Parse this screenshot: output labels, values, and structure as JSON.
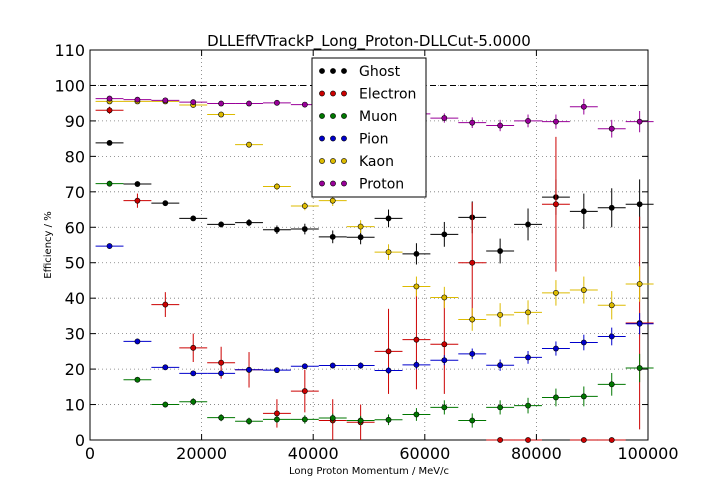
{
  "chart_data": {
    "type": "scatter",
    "title": "DLLEffVTrackP_Long_Proton-DLLCut-5.0000",
    "xlabel": "Long Proton Momentum / MeV/c",
    "ylabel": "Efficiency / %",
    "xlim": [
      0,
      100000
    ],
    "ylim": [
      0,
      110
    ],
    "xticks": [
      0,
      20000,
      40000,
      60000,
      80000,
      100000
    ],
    "yticks": [
      0,
      10,
      20,
      30,
      40,
      50,
      60,
      70,
      80,
      90,
      100,
      110
    ],
    "grid": true,
    "reference_line": 100,
    "legend_position": "top-center",
    "x_bin_half_width": 2500,
    "series": [
      {
        "name": "Ghost",
        "color": "#000000",
        "x": [
          3500,
          8500,
          13500,
          18500,
          23500,
          28500,
          33500,
          38500,
          43500,
          48500,
          53500,
          58500,
          63500,
          68500,
          73500,
          78500,
          83500,
          88500,
          93500,
          98500
        ],
        "y": [
          83.8,
          72.2,
          66.8,
          62.5,
          60.8,
          61.3,
          59.3,
          59.5,
          57.3,
          57.2,
          62.5,
          52.5,
          58,
          62.8,
          53.3,
          60.8,
          68.5,
          64.5,
          65.5,
          66.5
        ],
        "err": [
          0.5,
          0.5,
          0.6,
          0.7,
          0.8,
          1,
          1.2,
          1.5,
          1.8,
          2,
          2.5,
          3,
          3.5,
          4.5,
          3.5,
          4.5,
          5,
          5,
          5.5,
          7
        ]
      },
      {
        "name": "Electron",
        "color": "#cc0000",
        "x": [
          3500,
          8500,
          13500,
          18500,
          23500,
          28500,
          33500,
          38500,
          43500,
          48500,
          53500,
          58500,
          63500,
          68500,
          73500,
          78500,
          83500,
          88500,
          93500,
          98500
        ],
        "y": [
          93,
          67.5,
          38.2,
          26,
          21.8,
          19.8,
          7.5,
          13.8,
          5.5,
          5,
          25,
          28.3,
          27,
          50,
          0,
          0,
          66.5,
          0,
          0,
          33
        ],
        "err": [
          1,
          2,
          3.5,
          4,
          4.5,
          5,
          4,
          6,
          6,
          5,
          12,
          14,
          14,
          17,
          0,
          0,
          19,
          0,
          0,
          30
        ]
      },
      {
        "name": "Muon",
        "color": "#007700",
        "x": [
          3500,
          8500,
          13500,
          18500,
          23500,
          28500,
          33500,
          38500,
          43500,
          48500,
          53500,
          58500,
          63500,
          68500,
          73500,
          78500,
          83500,
          88500,
          93500,
          98500
        ],
        "y": [
          72.3,
          17,
          10,
          10.8,
          6.3,
          5.3,
          5.8,
          5.8,
          6.2,
          5.5,
          5.7,
          7.2,
          9.2,
          5.5,
          9.2,
          9.7,
          12,
          12.3,
          15.7,
          20.3
        ],
        "err": [
          0.8,
          0.8,
          0.8,
          1,
          1,
          1,
          1,
          1.2,
          1.2,
          1.3,
          1.5,
          1.8,
          2,
          2,
          2,
          2.2,
          2.5,
          2.8,
          3.2,
          4
        ]
      },
      {
        "name": "Pion",
        "color": "#0000cc",
        "x": [
          3500,
          8500,
          13500,
          18500,
          23500,
          28500,
          33500,
          38500,
          43500,
          48500,
          53500,
          58500,
          63500,
          68500,
          73500,
          78500,
          83500,
          88500,
          93500,
          98500
        ],
        "y": [
          54.7,
          27.8,
          20.5,
          18.8,
          18.8,
          19.8,
          19.7,
          20.8,
          21,
          21,
          19.6,
          21.2,
          22.5,
          24.3,
          21.1,
          23.3,
          25.8,
          27.5,
          29.2,
          32.8
        ],
        "err": [
          0.3,
          0.3,
          0.4,
          0.4,
          0.5,
          0.5,
          0.6,
          0.7,
          0.8,
          0.9,
          1,
          1.2,
          1.4,
          1.5,
          1.6,
          1.8,
          2,
          2.2,
          2.5,
          3
        ]
      },
      {
        "name": "Kaon",
        "color": "#ddbb00",
        "x": [
          3500,
          8500,
          13500,
          18500,
          23500,
          28500,
          33500,
          38500,
          43500,
          48500,
          53500,
          58500,
          63500,
          68500,
          73500,
          78500,
          83500,
          88500,
          93500,
          98500
        ],
        "y": [
          95.5,
          95.5,
          95.5,
          94.5,
          91.8,
          83.3,
          71.5,
          66,
          67.5,
          60.2,
          53,
          43.3,
          40.2,
          34,
          35.3,
          36,
          41.5,
          42.3,
          38,
          44
        ],
        "err": [
          0.3,
          0.3,
          0.4,
          0.5,
          0.6,
          0.8,
          1,
          1.2,
          1.5,
          1.8,
          2.2,
          2.8,
          3,
          3.2,
          3.3,
          3.4,
          3.6,
          3.8,
          4,
          5
        ]
      },
      {
        "name": "Proton",
        "color": "#990099",
        "x": [
          3500,
          8500,
          13500,
          18500,
          23500,
          28500,
          33500,
          38500,
          43500,
          48500,
          53500,
          58500,
          63500,
          68500,
          73500,
          78500,
          83500,
          88500,
          93500,
          98500
        ],
        "y": [
          96.3,
          96,
          95.8,
          95.3,
          94.9,
          94.9,
          95.1,
          94.6,
          94.5,
          93.5,
          92.5,
          92,
          90.8,
          89.5,
          88.7,
          90,
          89.8,
          94,
          87.8,
          89.8
        ],
        "err": [
          0.2,
          0.2,
          0.3,
          0.3,
          0.4,
          0.4,
          0.5,
          0.6,
          0.7,
          0.8,
          1,
          1.1,
          1.3,
          1.5,
          1.6,
          1.8,
          2,
          2.2,
          2.5,
          3
        ]
      }
    ]
  }
}
